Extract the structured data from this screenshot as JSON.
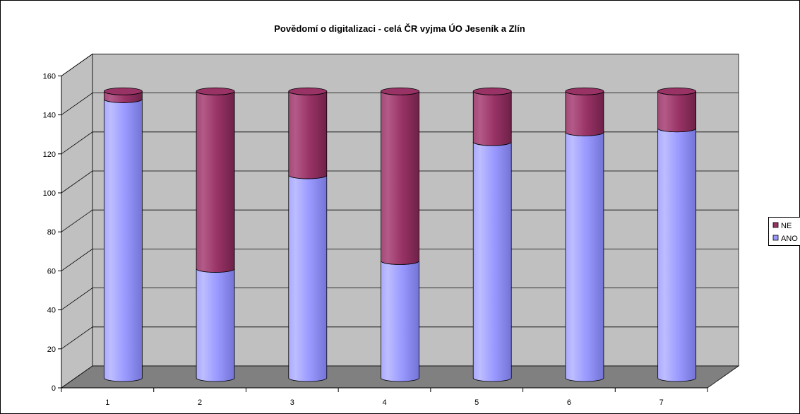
{
  "chart_data": {
    "type": "bar",
    "variant": "stacked-3d-cylinder",
    "title": "Povědomí o digitalizaci - celá ČR vyjma ÚO Jeseník a Zlín",
    "xlabel": "",
    "ylabel": "",
    "categories": [
      "1",
      "2",
      "3",
      "4",
      "5",
      "6",
      "7"
    ],
    "series": [
      {
        "name": "ANO",
        "color": "#9999ff",
        "values": [
          143,
          56,
          104,
          60,
          121,
          126,
          128
        ]
      },
      {
        "name": "NE",
        "color": "#993366",
        "values": [
          4,
          91,
          43,
          87,
          26,
          21,
          19
        ]
      }
    ],
    "ylim": [
      0,
      160
    ],
    "yticks": [
      "0",
      "20",
      "40",
      "60",
      "80",
      "100",
      "120",
      "140",
      "160"
    ],
    "grid": true,
    "legend_position": "right",
    "legend": [
      {
        "name": "NE",
        "color": "#993366"
      },
      {
        "name": "ANO",
        "color": "#9999ff"
      }
    ],
    "wall_color": "#c0c0c0",
    "floor_color": "#808080"
  }
}
